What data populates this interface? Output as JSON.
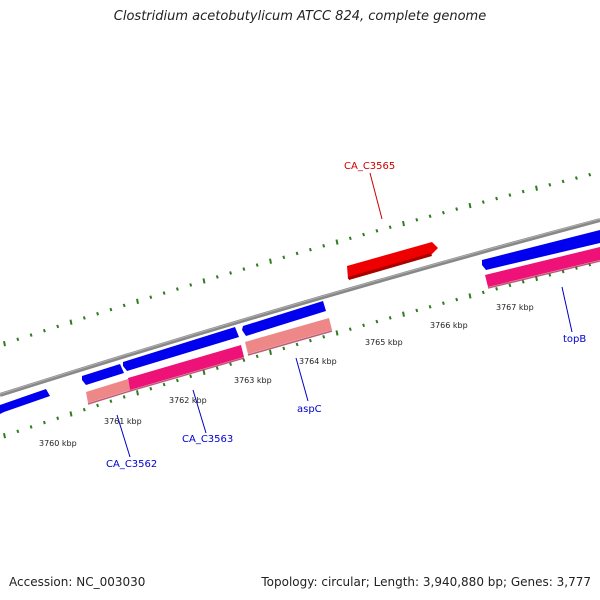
{
  "title": "Clostridium acetobutylicum ATCC 824, complete genome",
  "footer": {
    "accession": "Accession: NC_003030",
    "summary": "Topology: circular; Length: 3,940,880 bp; Genes: 3,777"
  },
  "colors": {
    "backbone": "#808080",
    "tick": "#2e7d1e",
    "label_red": "#cc0000",
    "label_blue": "#0000cc",
    "feature_blue": "#0000ee",
    "feature_magenta": "#ee1177",
    "feature_pink": "#ee8888",
    "feature_red": "#ee0000"
  },
  "kbp_labels": [
    {
      "text": "3760 kbp"
    },
    {
      "text": "3761 kbp"
    },
    {
      "text": "3762 kbp"
    },
    {
      "text": "3763 kbp"
    },
    {
      "text": "3764 kbp"
    },
    {
      "text": "3765 kbp"
    },
    {
      "text": "3766 kbp"
    },
    {
      "text": "3767 kbp"
    }
  ],
  "gene_labels": [
    {
      "text": "CA_C3565",
      "color": "#cc0000"
    },
    {
      "text": "topB",
      "color": "#0000cc"
    },
    {
      "text": "aspC",
      "color": "#0000cc"
    },
    {
      "text": "CA_C3563",
      "color": "#0000cc"
    },
    {
      "text": "CA_C3562",
      "color": "#0000cc"
    }
  ]
}
